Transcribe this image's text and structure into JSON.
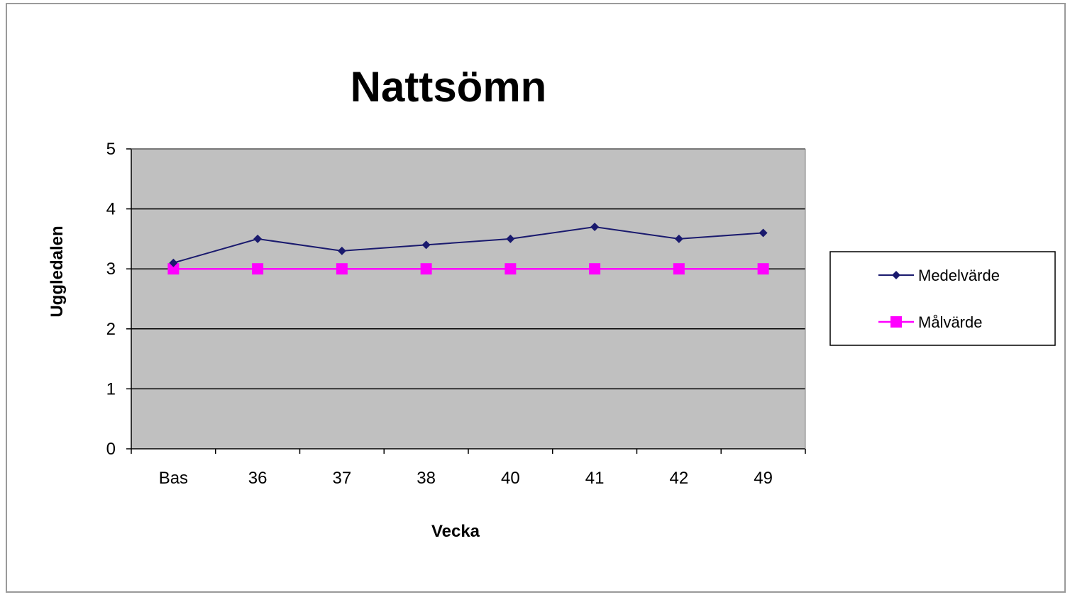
{
  "chart_data": {
    "type": "line",
    "title": "Nattsömn",
    "xlabel": "Vecka",
    "ylabel": "Uggledalen",
    "categories": [
      "Bas",
      "36",
      "37",
      "38",
      "40",
      "41",
      "42",
      "49"
    ],
    "ylim": [
      0,
      5
    ],
    "yticks": [
      "0",
      "1",
      "2",
      "3",
      "4",
      "5"
    ],
    "grid": true,
    "legend_position": "right",
    "plot_background": "#c0c0c0",
    "series": [
      {
        "name": "Medelvärde",
        "values": [
          3.1,
          3.5,
          3.3,
          3.4,
          3.5,
          3.7,
          3.5,
          3.6
        ],
        "color": "#1a1a6e",
        "marker": "diamond"
      },
      {
        "name": "Målvärde",
        "values": [
          3,
          3,
          3,
          3,
          3,
          3,
          3,
          3
        ],
        "color": "#ff00ff",
        "marker": "square"
      }
    ]
  }
}
